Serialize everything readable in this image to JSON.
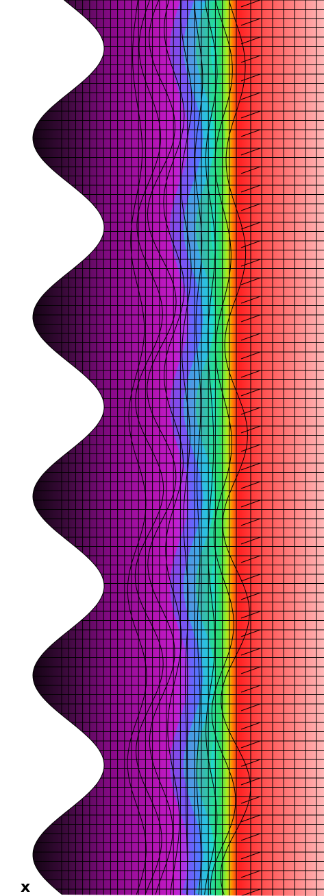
{
  "figure": {
    "type": "contour-mesh",
    "axis_label": "x",
    "colors": {
      "background": "#ffffff",
      "mesh_line": "#000000",
      "colormap": [
        "#000000",
        "#2a0a2a",
        "#6a0a6a",
        "#b012b0",
        "#cc20d8",
        "#9a50ff",
        "#4a90ff",
        "#20e0d0",
        "#30e060",
        "#b0f020",
        "#ff8000",
        "#ff2020",
        "#ff5050",
        "#ff8888",
        "#ffb0b0"
      ]
    },
    "wave": {
      "crests": 5,
      "amplitude_label": "",
      "period_label": ""
    }
  }
}
